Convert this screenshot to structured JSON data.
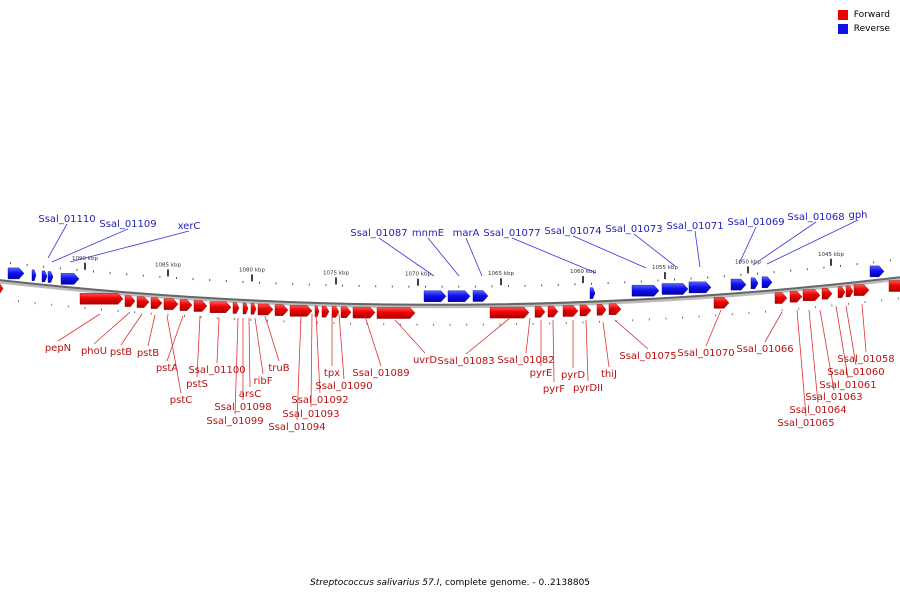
{
  "legend": [
    {
      "label": "Forward",
      "color": "#ee0000"
    },
    {
      "label": "Reverse",
      "color": "#1111ee"
    }
  ],
  "caption": {
    "organism": "Streptococcus salivarius 57.I",
    "rest": ", complete genome. - 0..2138805"
  },
  "ticks": [
    {
      "label": "1090 kbp",
      "mb": 1090
    },
    {
      "label": "1085 kbp",
      "mb": 1085
    },
    {
      "label": "1080 kbp",
      "mb": 1080
    },
    {
      "label": "1075 kbp",
      "mb": 1075
    },
    {
      "label": "1070 kbp",
      "mb": 1070
    },
    {
      "label": "1065 kbp",
      "mb": 1065
    },
    {
      "label": "1060 kbp",
      "mb": 1060
    },
    {
      "label": "1055 kbp",
      "mb": 1055
    },
    {
      "label": "1050 kbp",
      "mb": 1050
    },
    {
      "label": "1045 kbp",
      "mb": 1045
    }
  ],
  "reverse_genes": [
    "Ssal_01110",
    "Ssal_01109",
    "xerC",
    "Ssal_01087",
    "mnmE",
    "marA",
    "Ssal_01077",
    "Ssal_01074",
    "Ssal_01073",
    "Ssal_01071",
    "Ssal_01069",
    "Ssal_01068",
    "gph"
  ],
  "forward_genes": [
    "pepN",
    "phoU",
    "pstB",
    "pstB",
    "pstA",
    "pstS",
    "pstC",
    "Ssal_01100",
    "Ssal_01098",
    "Ssal_01099",
    "arsC",
    "ribF",
    "truB",
    "Ssal_01092",
    "Ssal_01093",
    "Ssal_01094",
    "tpx",
    "Ssal_01090",
    "Ssal_01089",
    "uvrD",
    "Ssal_01083",
    "Ssal_01082",
    "pyrE",
    "pyrF",
    "pyrD",
    "pyrDII",
    "thiJ",
    "Ssal_01075",
    "Ssal_01070",
    "Ssal_01066",
    "Ssal_01065",
    "Ssal_01064",
    "Ssal_01063",
    "Ssal_01061",
    "Ssal_01060",
    "Ssal_01058"
  ]
}
